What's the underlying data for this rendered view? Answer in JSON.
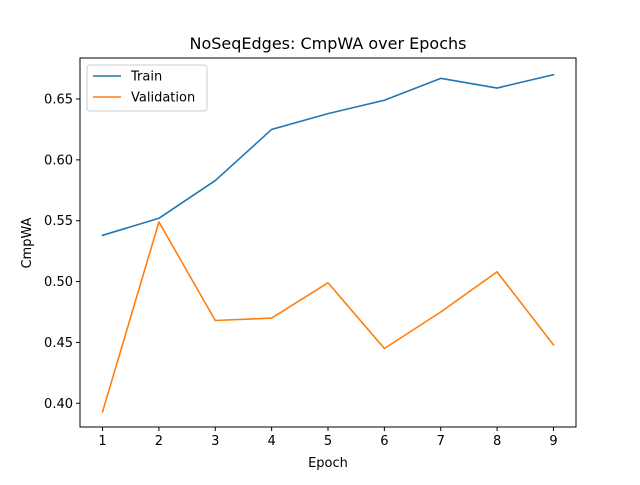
{
  "chart_data": {
    "type": "line",
    "title": "NoSeqEdges: CmpWA over Epochs",
    "xlabel": "Epoch",
    "ylabel": "CmpWA",
    "x": [
      1,
      2,
      3,
      4,
      5,
      6,
      7,
      8,
      9
    ],
    "xticks": [
      1,
      2,
      3,
      4,
      5,
      6,
      7,
      8,
      9
    ],
    "yticks": [
      0.4,
      0.45,
      0.5,
      0.55,
      0.6,
      0.65
    ],
    "xlim": [
      0.6,
      9.4
    ],
    "ylim": [
      0.3805,
      0.6837
    ],
    "grid": false,
    "legend_position": "top-left",
    "series": [
      {
        "name": "Train",
        "color": "#1f77b4",
        "values": [
          0.538,
          0.552,
          0.583,
          0.625,
          0.638,
          0.649,
          0.667,
          0.659,
          0.67
        ]
      },
      {
        "name": "Validation",
        "color": "#ff7f0e",
        "values": [
          0.393,
          0.549,
          0.468,
          0.47,
          0.499,
          0.445,
          0.475,
          0.508,
          0.448
        ]
      }
    ]
  }
}
